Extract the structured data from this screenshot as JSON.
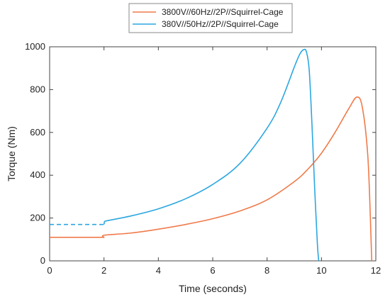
{
  "chart_data": {
    "type": "line",
    "title": "",
    "xlabel": "Time (seconds)",
    "ylabel": "Torque (Nm)",
    "xlim": [
      0,
      12
    ],
    "ylim": [
      0,
      1000
    ],
    "xticks": [
      0,
      2,
      4,
      6,
      8,
      10,
      12
    ],
    "yticks": [
      0,
      200,
      400,
      600,
      800,
      1000
    ],
    "grid": false,
    "legend_position": "top-center",
    "series": [
      {
        "name": "3800V//60Hz//2P//Squirrel-Cage",
        "color": "#f07a4a",
        "x": [
          0,
          1.98,
          2.0,
          2.02,
          3,
          4,
          5,
          6,
          7,
          8,
          9,
          9.5,
          10,
          10.5,
          11.0,
          11.3,
          11.5,
          11.7,
          11.8,
          11.85
        ],
        "y": [
          110,
          110,
          110,
          120,
          130,
          148,
          170,
          197,
          233,
          285,
          370,
          428,
          503,
          600,
          710,
          765,
          720,
          500,
          200,
          0
        ]
      },
      {
        "name": "380V//50Hz//2P//Squirrel-Cage",
        "color": "#2ca7e0",
        "dashed_until_x": 2,
        "x": [
          0,
          1.98,
          2.0,
          2.02,
          3,
          4,
          5,
          6,
          7,
          8,
          8.5,
          9,
          9.2,
          9.35,
          9.45,
          9.55,
          9.65,
          9.75,
          9.85,
          9.9
        ],
        "y": [
          170,
          170,
          170,
          185,
          210,
          243,
          290,
          357,
          455,
          620,
          740,
          905,
          965,
          987,
          975,
          890,
          640,
          340,
          80,
          0
        ]
      }
    ]
  }
}
